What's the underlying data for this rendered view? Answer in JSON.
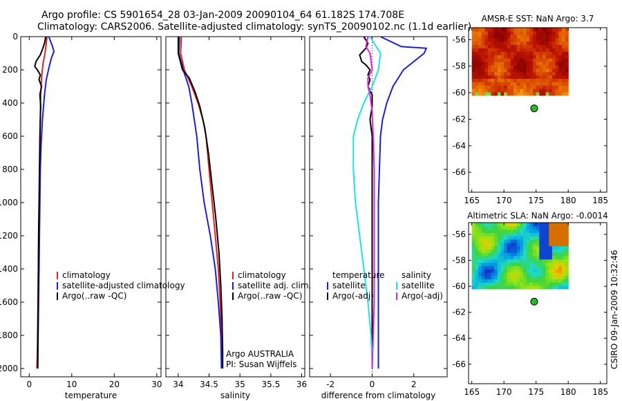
{
  "title": {
    "line1": "Argo profile: CS 5901654_28 03-Jan-2009 20090104_64 61.182S 174.708E",
    "line2": "Climatology: CARS2006. Satellite-adjusted climatology: synTS_20090102.nc (1.1d earlier)"
  },
  "footer": "Argo AUSTRALIA",
  "pi": "PI: Susan Wijffels",
  "credit": "CSIRO 09-Jan-2009 10:32:46",
  "colors": {
    "climatology": "#e02020",
    "satellite": "#1a1ae0",
    "argo": "#000000",
    "sal_satellite": "#18e4e4",
    "sal_argo": "#e020e0",
    "marker": "#22bb22"
  },
  "chart_data": [
    {
      "type": "line",
      "id": "temperature",
      "xlabel": "temperature",
      "ylabel": "",
      "xlim": [
        -2,
        31
      ],
      "ylim": [
        2050,
        0
      ],
      "xticks": [
        0,
        10,
        20,
        30
      ],
      "yticks": [
        0,
        200,
        400,
        600,
        800,
        1000,
        1200,
        1400,
        1600,
        1800,
        2000
      ],
      "legend": {
        "position": "bottom-right",
        "entries": [
          "climatology",
          "satellite-adjusted climatology",
          "Argo(..raw -QC)"
        ]
      },
      "series": [
        {
          "name": "climatology",
          "color": "#e02020",
          "points": [
            [
              4.2,
              0
            ],
            [
              4.0,
              40
            ],
            [
              3.7,
              100
            ],
            [
              3.2,
              170
            ],
            [
              2.9,
              250
            ],
            [
              2.7,
              350
            ],
            [
              2.6,
              500
            ],
            [
              2.5,
              700
            ],
            [
              2.4,
              900
            ],
            [
              2.3,
              1100
            ],
            [
              2.2,
              1300
            ],
            [
              2.1,
              1500
            ],
            [
              2.0,
              1700
            ],
            [
              1.9,
              1900
            ],
            [
              1.8,
              2000
            ]
          ]
        },
        {
          "name": "satellite-adjusted climatology",
          "color": "#1a1ae0",
          "points": [
            [
              4.6,
              0
            ],
            [
              5.5,
              60
            ],
            [
              5.8,
              90
            ],
            [
              5.2,
              130
            ],
            [
              4.7,
              180
            ],
            [
              4.0,
              260
            ],
            [
              3.6,
              350
            ],
            [
              3.1,
              500
            ],
            [
              2.8,
              650
            ],
            [
              2.6,
              800
            ],
            [
              2.5,
              1000
            ],
            [
              2.4,
              1200
            ],
            [
              2.3,
              1400
            ],
            [
              2.2,
              1600
            ],
            [
              2.1,
              1800
            ],
            [
              2.0,
              2000
            ]
          ]
        },
        {
          "name": "Argo(..raw -QC)",
          "color": "#000000",
          "points": [
            [
              3.9,
              0
            ],
            [
              3.6,
              40
            ],
            [
              3.2,
              70
            ],
            [
              2.6,
              110
            ],
            [
              1.6,
              150
            ],
            [
              1.3,
              180
            ],
            [
              1.9,
              200
            ],
            [
              2.6,
              230
            ],
            [
              2.3,
              260
            ],
            [
              2.9,
              300
            ],
            [
              2.5,
              350
            ],
            [
              2.7,
              420
            ],
            [
              2.6,
              500
            ],
            [
              2.5,
              600
            ],
            [
              2.4,
              800
            ],
            [
              2.3,
              1000
            ],
            [
              2.2,
              1200
            ],
            [
              2.15,
              1400
            ],
            [
              2.1,
              1600
            ],
            [
              2.05,
              1800
            ],
            [
              2.0,
              2000
            ]
          ]
        }
      ]
    },
    {
      "type": "line",
      "id": "salinity",
      "xlabel": "salinity",
      "ylabel": "",
      "xlim": [
        33.8,
        36.05
      ],
      "ylim": [
        2050,
        0
      ],
      "xticks": [
        34,
        34.5,
        35,
        35.5,
        36
      ],
      "legend": {
        "position": "bottom-right",
        "entries": [
          "climatology",
          "satellite adj. clim.",
          "Argo(..raw -QC)"
        ]
      },
      "series": [
        {
          "name": "climatology",
          "color": "#e02020",
          "points": [
            [
              34.05,
              0
            ],
            [
              34.04,
              100
            ],
            [
              34.1,
              200
            ],
            [
              34.22,
              300
            ],
            [
              34.32,
              400
            ],
            [
              34.4,
              500
            ],
            [
              34.45,
              600
            ],
            [
              34.5,
              800
            ],
            [
              34.55,
              1000
            ],
            [
              34.6,
              1200
            ],
            [
              34.65,
              1400
            ],
            [
              34.68,
              1600
            ],
            [
              34.7,
              1800
            ],
            [
              34.71,
              2000
            ]
          ]
        },
        {
          "name": "satellite adj. clim.",
          "color": "#1a1ae0",
          "points": [
            [
              34.02,
              0
            ],
            [
              34.01,
              100
            ],
            [
              34.08,
              200
            ],
            [
              34.17,
              300
            ],
            [
              34.22,
              400
            ],
            [
              34.26,
              500
            ],
            [
              34.3,
              600
            ],
            [
              34.35,
              800
            ],
            [
              34.42,
              1000
            ],
            [
              34.52,
              1200
            ],
            [
              34.6,
              1400
            ],
            [
              34.65,
              1600
            ],
            [
              34.69,
              1800
            ],
            [
              34.7,
              2000
            ]
          ]
        },
        {
          "name": "Argo(..raw -QC)",
          "color": "#000000",
          "points": [
            [
              34.0,
              0
            ],
            [
              34.0,
              100
            ],
            [
              34.07,
              200
            ],
            [
              34.18,
              250
            ],
            [
              34.27,
              330
            ],
            [
              34.35,
              420
            ],
            [
              34.43,
              550
            ],
            [
              34.49,
              700
            ],
            [
              34.55,
              900
            ],
            [
              34.61,
              1100
            ],
            [
              34.66,
              1300
            ],
            [
              34.69,
              1500
            ],
            [
              34.71,
              1700
            ],
            [
              34.72,
              1900
            ],
            [
              34.72,
              2000
            ]
          ]
        }
      ]
    },
    {
      "type": "line",
      "id": "difference",
      "xlabel": "difference from climatology",
      "ylabel": "",
      "xlim": [
        -3,
        3.6
      ],
      "ylim": [
        2050,
        0
      ],
      "xticks": [
        -2,
        0,
        2
      ],
      "legend": {
        "position": "bottom",
        "headers": [
          "temperature",
          "salinity"
        ],
        "entries": [
          [
            "satellite",
            "Argo(-adj)"
          ],
          [
            "satellite",
            "Argo(-adj)"
          ]
        ]
      },
      "series": [
        {
          "name": "temperature satellite",
          "color": "#1a1ae0",
          "points": [
            [
              0.4,
              0
            ],
            [
              1.4,
              60
            ],
            [
              2.6,
              70
            ],
            [
              2.5,
              100
            ],
            [
              1.5,
              200
            ],
            [
              1.0,
              300
            ],
            [
              0.7,
              400
            ],
            [
              0.5,
              500
            ],
            [
              0.4,
              600
            ],
            [
              0.35,
              800
            ],
            [
              0.3,
              1000
            ],
            [
              0.3,
              1200
            ],
            [
              0.3,
              1400
            ],
            [
              0.3,
              1600
            ],
            [
              0.3,
              1800
            ],
            [
              0.3,
              2000
            ]
          ]
        },
        {
          "name": "temperature Argo(-adj)",
          "color": "#000000",
          "points": [
            [
              -0.4,
              0
            ],
            [
              -0.2,
              40
            ],
            [
              -0.3,
              70
            ],
            [
              -0.6,
              110
            ],
            [
              -0.5,
              150
            ],
            [
              -0.3,
              170
            ],
            [
              -0.1,
              200
            ],
            [
              -0.2,
              230
            ],
            [
              -0.1,
              260
            ],
            [
              -0.2,
              300
            ],
            [
              0.0,
              350
            ],
            [
              0.0,
              420
            ],
            [
              -0.1,
              500
            ],
            [
              0.0,
              600
            ],
            [
              0.0,
              800
            ],
            [
              0.0,
              1000
            ],
            [
              0.0,
              1200
            ],
            [
              0.0,
              1400
            ],
            [
              0.0,
              1600
            ],
            [
              0.0,
              1800
            ],
            [
              0.0,
              2000
            ]
          ]
        },
        {
          "name": "salinity satellite",
          "color": "#18e4e4",
          "points": [
            [
              -0.1,
              0
            ],
            [
              0.4,
              100
            ],
            [
              0.3,
              200
            ],
            [
              0.0,
              300
            ],
            [
              -0.4,
              400
            ],
            [
              -0.7,
              500
            ],
            [
              -0.9,
              600
            ],
            [
              -0.9,
              800
            ],
            [
              -0.8,
              1000
            ],
            [
              -0.6,
              1200
            ],
            [
              -0.4,
              1400
            ],
            [
              -0.2,
              1600
            ],
            [
              -0.05,
              1800
            ],
            [
              0.0,
              2000
            ]
          ]
        },
        {
          "name": "salinity Argo(-adj)",
          "color": "#e020e0",
          "points": [
            [
              -0.2,
              0
            ],
            [
              -0.3,
              60
            ],
            [
              -0.1,
              100
            ],
            [
              0.0,
              200
            ],
            [
              -0.2,
              250
            ],
            [
              -0.2,
              300
            ],
            [
              -0.1,
              350
            ],
            [
              0.0,
              450
            ],
            [
              0.05,
              600
            ],
            [
              0.1,
              800
            ],
            [
              0.1,
              1000
            ],
            [
              0.1,
              1200
            ],
            [
              0.1,
              1400
            ],
            [
              0.1,
              1600
            ],
            [
              0.05,
              1800
            ],
            [
              0.0,
              2000
            ]
          ]
        }
      ]
    },
    {
      "type": "heatmap",
      "id": "sst-map",
      "title": "AMSR-E SST: NaN Argo: 3.7",
      "xlim": [
        164.5,
        186
      ],
      "ylim": [
        -67.5,
        -55.1
      ],
      "xticks": [
        165,
        170,
        175,
        180,
        185
      ],
      "yticks": [
        -56,
        -58,
        -60,
        -62,
        -64,
        -66
      ],
      "field_lon": [
        165,
        180
      ],
      "field_lat": [
        -60.2,
        -55.1
      ],
      "marker": {
        "lon": 174.708,
        "lat": -61.182
      }
    },
    {
      "type": "heatmap",
      "id": "sla-map",
      "title": "Altimetric SLA: NaN Argo: -0.0014",
      "xlim": [
        164.5,
        186
      ],
      "ylim": [
        -67.5,
        -55.1
      ],
      "xticks": [
        165,
        170,
        175,
        180,
        185
      ],
      "yticks": [
        -56,
        -58,
        -60,
        -62,
        -64,
        -66
      ],
      "field_lon": [
        165,
        180
      ],
      "field_lat": [
        -60.2,
        -55.1
      ],
      "marker": {
        "lon": 174.708,
        "lat": -61.182
      }
    }
  ]
}
